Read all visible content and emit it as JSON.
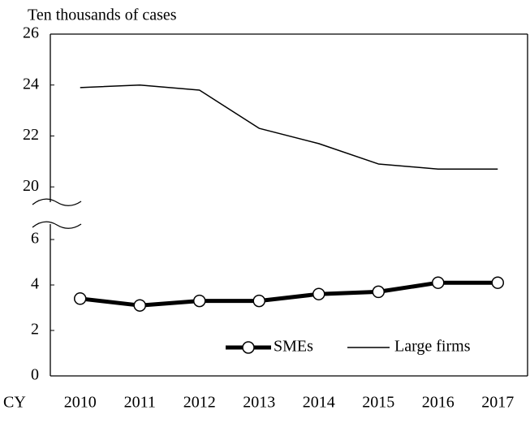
{
  "chart_data": {
    "type": "line",
    "y_label": "Ten thousands of cases",
    "x_label": "CY",
    "categories": [
      "2010",
      "2011",
      "2012",
      "2013",
      "2014",
      "2015",
      "2016",
      "2017"
    ],
    "series": [
      {
        "name": "SMEs",
        "color": "#000000",
        "values": [
          3.4,
          3.1,
          3.3,
          3.3,
          3.6,
          3.7,
          4.1,
          4.1
        ]
      },
      {
        "name": "Large firms",
        "color": "#000000",
        "values": [
          23.9,
          24.0,
          23.8,
          22.3,
          21.7,
          20.9,
          20.7,
          20.7
        ]
      }
    ],
    "y_segments": [
      {
        "ylim": [
          0,
          7.2
        ],
        "yticks": [
          0,
          2,
          4,
          6
        ]
      },
      {
        "ylim": [
          19.4,
          26
        ],
        "yticks": [
          20,
          22,
          24,
          26
        ]
      }
    ]
  }
}
